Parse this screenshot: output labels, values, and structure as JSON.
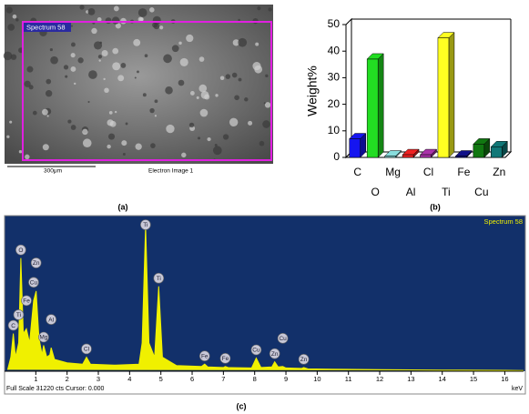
{
  "image_panel": {
    "spectrum_label": "Spectrum 58",
    "scale_label": "300μm",
    "image_label": "Electron Image 1"
  },
  "captions": [
    "(a)",
    "(b)",
    "(c)"
  ],
  "chart_data": [
    {
      "type": "bar3d",
      "y_label": "Weight%",
      "categories": [
        "C",
        "O",
        "Mg",
        "Al",
        "Cl",
        "Ti",
        "Fe",
        "Cu",
        "Zn"
      ],
      "values": [
        7,
        37,
        0.5,
        1,
        1,
        45,
        0.5,
        5,
        4
      ],
      "colors": [
        "#1515f0",
        "#22dd22",
        "#88dddd",
        "#ee2222",
        "#aa33aa",
        "#ffff22",
        "#111188",
        "#117711",
        "#117777"
      ],
      "ylim": [
        0,
        50
      ],
      "yticks": [
        0,
        10,
        20,
        30,
        40,
        50
      ]
    },
    {
      "type": "area",
      "title": "Spectrum 58",
      "footer": "Full Scale 31220 cts Cursor: 0.000",
      "x_unit": "keV",
      "color": "#f0f000",
      "x": [
        0.1,
        0.2,
        0.28,
        0.35,
        0.45,
        0.52,
        0.6,
        0.7,
        0.8,
        0.93,
        1.01,
        1.1,
        1.2,
        1.25,
        1.35,
        1.45,
        1.49,
        1.6,
        2.0,
        2.5,
        2.62,
        2.75,
        3.5,
        4.3,
        4.4,
        4.51,
        4.62,
        4.8,
        4.93,
        5.05,
        5.5,
        6.3,
        6.4,
        6.5,
        7.0,
        7.06,
        7.15,
        7.9,
        8.05,
        8.2,
        8.55,
        8.64,
        8.75,
        8.9,
        9.0,
        9.5,
        9.57,
        9.7,
        10.5,
        12,
        14,
        16,
        16.6
      ],
      "values": [
        300,
        3000,
        8000,
        3000,
        6000,
        24000,
        8000,
        9000,
        6000,
        15000,
        17000,
        7000,
        3500,
        5500,
        3000,
        3500,
        5000,
        2500,
        1800,
        1500,
        3000,
        1500,
        1300,
        1500,
        6000,
        31000,
        6000,
        3000,
        18000,
        3000,
        1200,
        1000,
        1500,
        900,
        800,
        1000,
        800,
        700,
        2800,
        800,
        900,
        2000,
        900,
        1000,
        700,
        600,
        800,
        500,
        450,
        350,
        250,
        200,
        150
      ],
      "xlim": [
        0,
        16.6
      ],
      "ylim": [
        0,
        33000
      ],
      "xticks": [
        1,
        2,
        3,
        4,
        5,
        6,
        7,
        8,
        9,
        10,
        11,
        12,
        13,
        14,
        15,
        16
      ],
      "annotations": [
        {
          "text": "C",
          "x": 0.28
        },
        {
          "text": "Ti",
          "x": 0.45
        },
        {
          "text": "O",
          "x": 0.52
        },
        {
          "text": "Fe",
          "x": 0.7
        },
        {
          "text": "Cu",
          "x": 0.93
        },
        {
          "text": "Zn",
          "x": 1.01
        },
        {
          "text": "Mg",
          "x": 1.25
        },
        {
          "text": "Al",
          "x": 1.49
        },
        {
          "text": "Cl",
          "x": 2.62
        },
        {
          "text": "Ti",
          "x": 4.51
        },
        {
          "text": "Ti",
          "x": 4.93
        },
        {
          "text": "Fe",
          "x": 6.4
        },
        {
          "text": "Fe",
          "x": 7.06
        },
        {
          "text": "Cu",
          "x": 8.05
        },
        {
          "text": "Zn",
          "x": 8.64
        },
        {
          "text": "Cu",
          "x": 8.9
        },
        {
          "text": "Zn",
          "x": 9.57
        }
      ]
    }
  ]
}
